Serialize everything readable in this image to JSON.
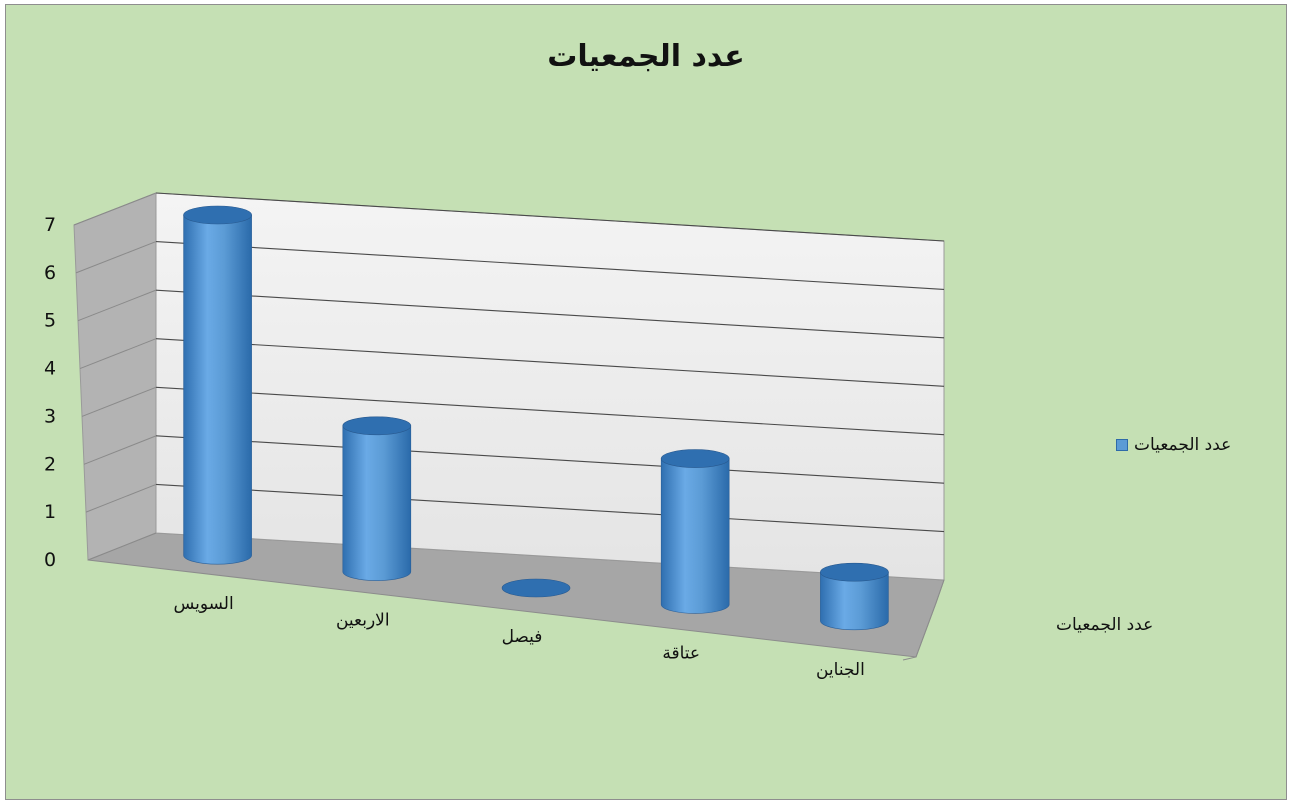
{
  "chart_data": {
    "type": "bar",
    "title": "عدد الجمعيات",
    "categories": [
      "السويس",
      "الاربعين",
      "فيصل",
      "عتاقة",
      "الجناين"
    ],
    "series": [
      {
        "name": "عدد الجمعيات",
        "values": [
          7,
          3,
          0,
          3,
          1
        ]
      }
    ],
    "depth_axis_label": "عدد الجمعيات",
    "ylim": [
      0,
      7
    ],
    "yticks": [
      "0",
      "1",
      "2",
      "3",
      "4",
      "5",
      "6",
      "7"
    ],
    "grid": true,
    "legend": "right",
    "colors": {
      "background": "#c5e0b4",
      "bar": "#5b9bd5",
      "bar_dark": "#2f6fb0",
      "floor": "#a6a6a6",
      "side_wall": "#b3b3b3",
      "back_wall": "#ececec"
    }
  }
}
